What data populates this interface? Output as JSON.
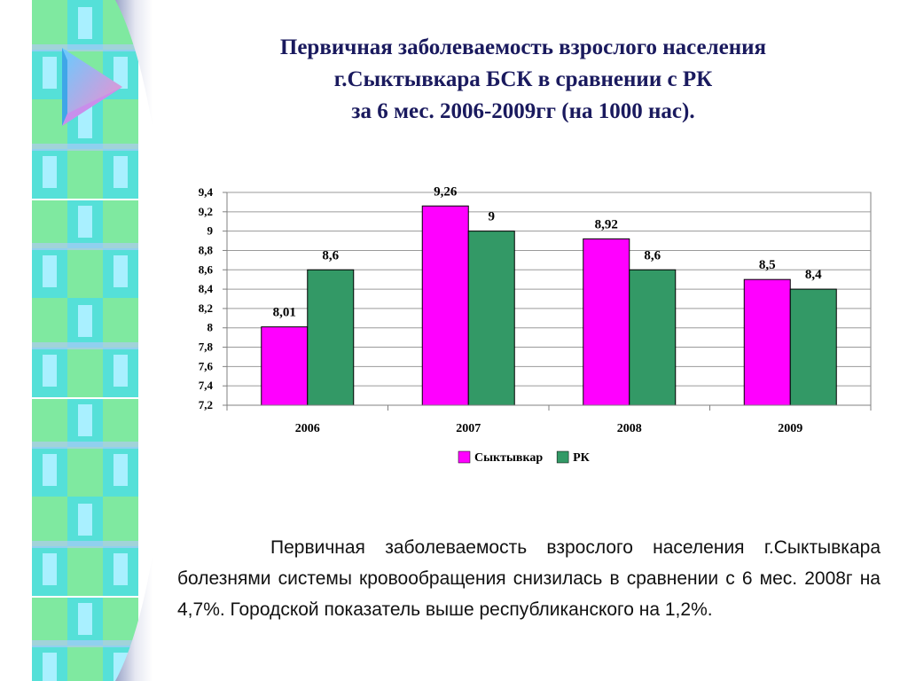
{
  "title": {
    "line1": "Первичная заболеваемость взрослого населения",
    "line2": "г.Сыктывкара БСК в сравнении с РК",
    "line3": "за 6 мес. 2006-2009гг (на 1000 нас)."
  },
  "chart_data": {
    "type": "bar",
    "categories": [
      "2006",
      "2007",
      "2008",
      "2009"
    ],
    "series": [
      {
        "name": "Сыктывкар",
        "color": "#ff00ff",
        "values": [
          8.01,
          9.26,
          8.92,
          8.5
        ],
        "labels": [
          "8,01",
          "9,26",
          "8,92",
          "8,5"
        ]
      },
      {
        "name": "РК",
        "color": "#339966",
        "values": [
          8.6,
          9,
          8.6,
          8.4
        ],
        "labels": [
          "8,6",
          "9",
          "8,6",
          "8,4"
        ]
      }
    ],
    "ylim": [
      7.2,
      9.4
    ],
    "yticks": [
      {
        "value": 7.2,
        "label": "7,2"
      },
      {
        "value": 7.4,
        "label": "7,4"
      },
      {
        "value": 7.6,
        "label": "7,6"
      },
      {
        "value": 7.8,
        "label": "7,8"
      },
      {
        "value": 8.0,
        "label": "8"
      },
      {
        "value": 8.2,
        "label": "8,2"
      },
      {
        "value": 8.4,
        "label": "8,4"
      },
      {
        "value": 8.6,
        "label": "8,6"
      },
      {
        "value": 8.8,
        "label": "8,8"
      },
      {
        "value": 9.0,
        "label": "9"
      },
      {
        "value": 9.2,
        "label": "9,2"
      },
      {
        "value": 9.4,
        "label": "9,4"
      }
    ],
    "grid": true,
    "legend": "bottom"
  },
  "body_text": "Первичная заболеваемость взрослого населения г.Сыктывкара болезнями системы кровообращения снизилась в сравнении с 6 мес. 2008г на 4,7%. Городской показатель выше республиканского на 1,2%."
}
